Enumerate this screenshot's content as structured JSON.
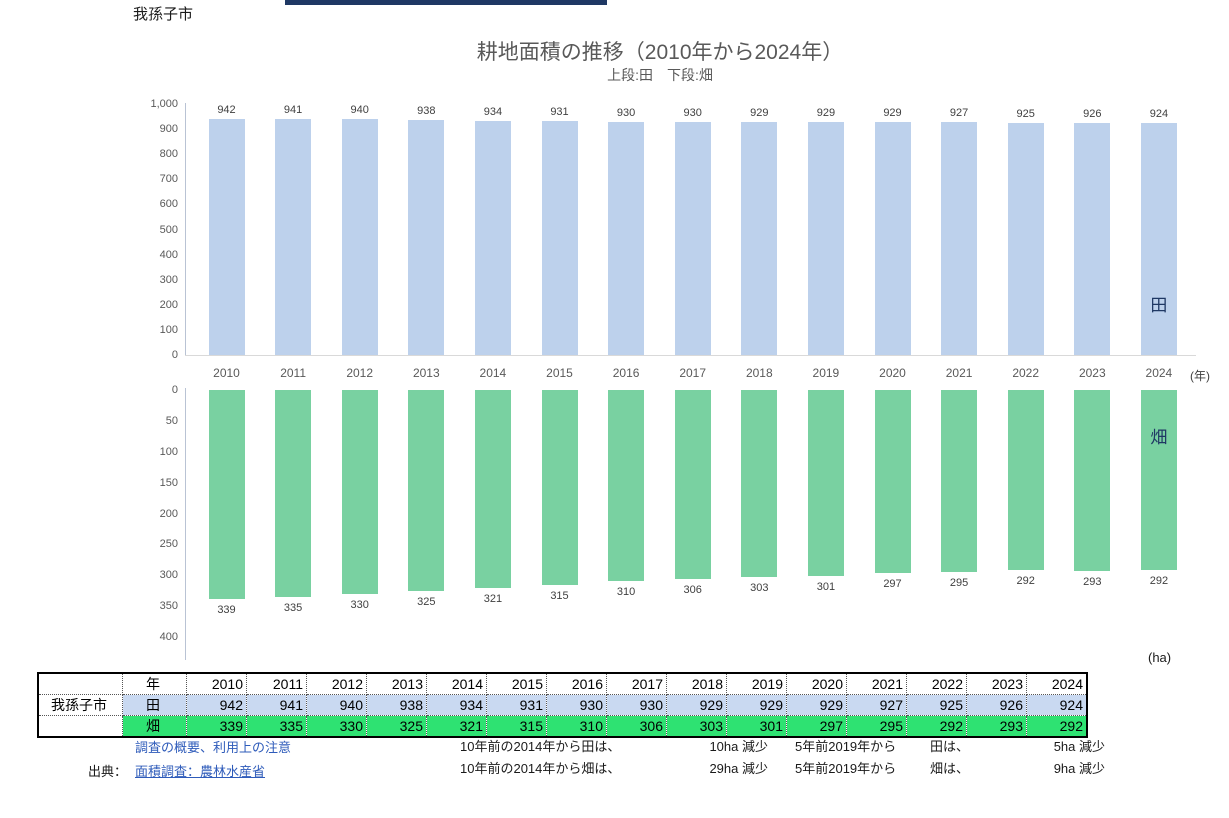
{
  "page": {
    "municipality": "我孫子市",
    "title": "耕地面積の推移（2010年から2024年）",
    "subtitle": "上段:田　下段:畑",
    "unit_year": "(年)",
    "unit_ha": "(ha)"
  },
  "colors": {
    "paddy_bar": "#BDD1EC",
    "field_bar": "#79D1A1",
    "table_paddy_row": "#C9D9F1",
    "table_field_row": "#2EE272",
    "title_gray": "#595959",
    "link_blue": "#2E5BBA",
    "series_label_navy": "#1F3864",
    "clipped_bar_navy": "#1F3864"
  },
  "chart_data": [
    {
      "type": "bar",
      "name": "paddy-upper-chart",
      "series_label": "田",
      "title": "耕地面積の推移（2010年から2024年）",
      "subtitle": "上段:田　下段:畑",
      "categories": [
        "2010",
        "2011",
        "2012",
        "2013",
        "2014",
        "2015",
        "2016",
        "2017",
        "2018",
        "2019",
        "2020",
        "2021",
        "2022",
        "2023",
        "2024"
      ],
      "values": [
        942,
        941,
        940,
        938,
        934,
        931,
        930,
        930,
        929,
        929,
        929,
        927,
        925,
        926,
        924
      ],
      "ylim": [
        0,
        1000
      ],
      "ytick_values": [
        0,
        100,
        200,
        300,
        400,
        500,
        600,
        700,
        800,
        900,
        1000
      ],
      "ytick_labels": [
        "0",
        "100",
        "200",
        "300",
        "400",
        "500",
        "600",
        "700",
        "800",
        "900",
        "1,000"
      ],
      "xlabel_unit": "(年)",
      "grid": false,
      "legend_position": "inside-last-bar",
      "color": "#BDD1EC"
    },
    {
      "type": "bar",
      "name": "field-lower-chart",
      "series_label": "畑",
      "inverted_axis": true,
      "categories": [
        "2010",
        "2011",
        "2012",
        "2013",
        "2014",
        "2015",
        "2016",
        "2017",
        "2018",
        "2019",
        "2020",
        "2021",
        "2022",
        "2023",
        "2024"
      ],
      "values": [
        339,
        335,
        330,
        325,
        321,
        315,
        310,
        306,
        303,
        301,
        297,
        295,
        292,
        293,
        292
      ],
      "ylim": [
        0,
        400
      ],
      "ytick_values": [
        0,
        50,
        100,
        150,
        200,
        250,
        300,
        350,
        400
      ],
      "ytick_labels": [
        "0",
        "50",
        "100",
        "150",
        "200",
        "250",
        "300",
        "350",
        "400"
      ],
      "grid": false,
      "legend_position": "inside-last-bar",
      "color": "#79D1A1"
    }
  ],
  "table": {
    "unit": "(ha)",
    "year_header": "年",
    "years": [
      "2010",
      "2011",
      "2012",
      "2013",
      "2014",
      "2015",
      "2016",
      "2017",
      "2018",
      "2019",
      "2020",
      "2021",
      "2022",
      "2023",
      "2024"
    ],
    "rows": [
      {
        "label": "我孫子市",
        "attr": "田",
        "values": [
          "942",
          "941",
          "940",
          "938",
          "934",
          "931",
          "930",
          "930",
          "929",
          "929",
          "929",
          "927",
          "925",
          "926",
          "924"
        ]
      },
      {
        "label": "",
        "attr": "畑",
        "values": [
          "339",
          "335",
          "330",
          "325",
          "321",
          "315",
          "310",
          "306",
          "303",
          "301",
          "297",
          "295",
          "292",
          "293",
          "292"
        ]
      }
    ]
  },
  "notes": {
    "survey_link": "調査の概要、利用上の注意",
    "source_prefix": "出典：",
    "source_link": "面積調査：農林水産省",
    "comparisons": [
      {
        "c1": "10年前の2014年から田は、",
        "c2": "10ha 減少",
        "c3": "5年前2019年から",
        "c4": "田は、",
        "c5": "5ha 減少"
      },
      {
        "c1": "10年前の2014年から畑は、",
        "c2": "29ha 減少",
        "c3": "5年前2019年から",
        "c4": "畑は、",
        "c5": "9ha 減少"
      }
    ]
  }
}
